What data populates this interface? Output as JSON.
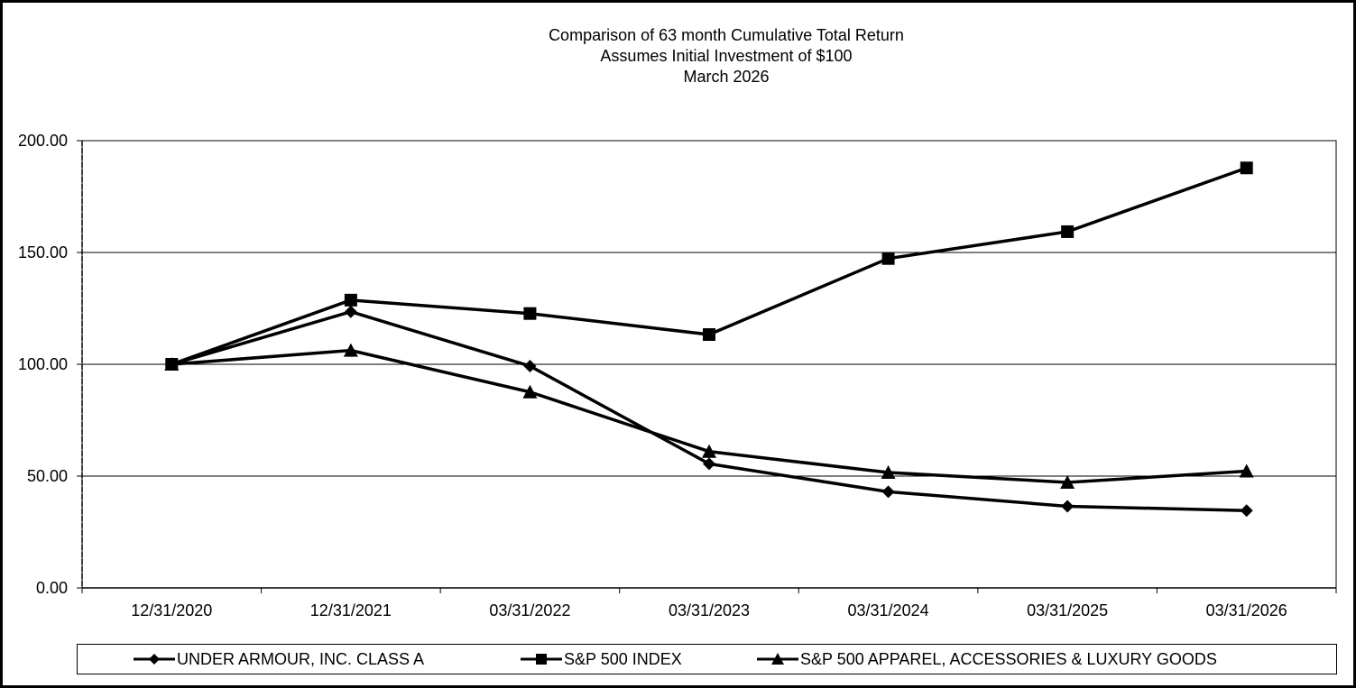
{
  "chart_data": {
    "type": "line",
    "title": "Comparison of 63 month Cumulative Total Return",
    "subtitle": "Assumes Initial Investment of $100",
    "subtitle2": "March 2026",
    "categories": [
      "12/31/2020",
      "12/31/2021",
      "03/31/2022",
      "03/31/2023",
      "03/31/2024",
      "03/31/2025",
      "03/31/2026"
    ],
    "ylim": [
      0,
      200
    ],
    "yticks": [
      "0.00",
      "50.00",
      "100.00",
      "150.00",
      "200.00"
    ],
    "grid": true,
    "legend_position": "bottom",
    "series": [
      {
        "name": "UNDER ARMOUR, INC. CLASS A",
        "marker": "diamond",
        "color": "#000000",
        "values": [
          100,
          123.5,
          99.2,
          55.5,
          43.0,
          36.5,
          34.6
        ]
      },
      {
        "name": "S&P 500 INDEX",
        "marker": "square",
        "color": "#000000",
        "values": [
          100,
          128.7,
          122.7,
          113.3,
          147.3,
          159.3,
          187.8
        ]
      },
      {
        "name": "S&P 500 APPAREL, ACCESSORIES & LUXURY GOODS",
        "marker": "triangle",
        "color": "#000000",
        "values": [
          100,
          106.2,
          87.6,
          61.0,
          51.6,
          47.2,
          52.2
        ]
      }
    ]
  }
}
